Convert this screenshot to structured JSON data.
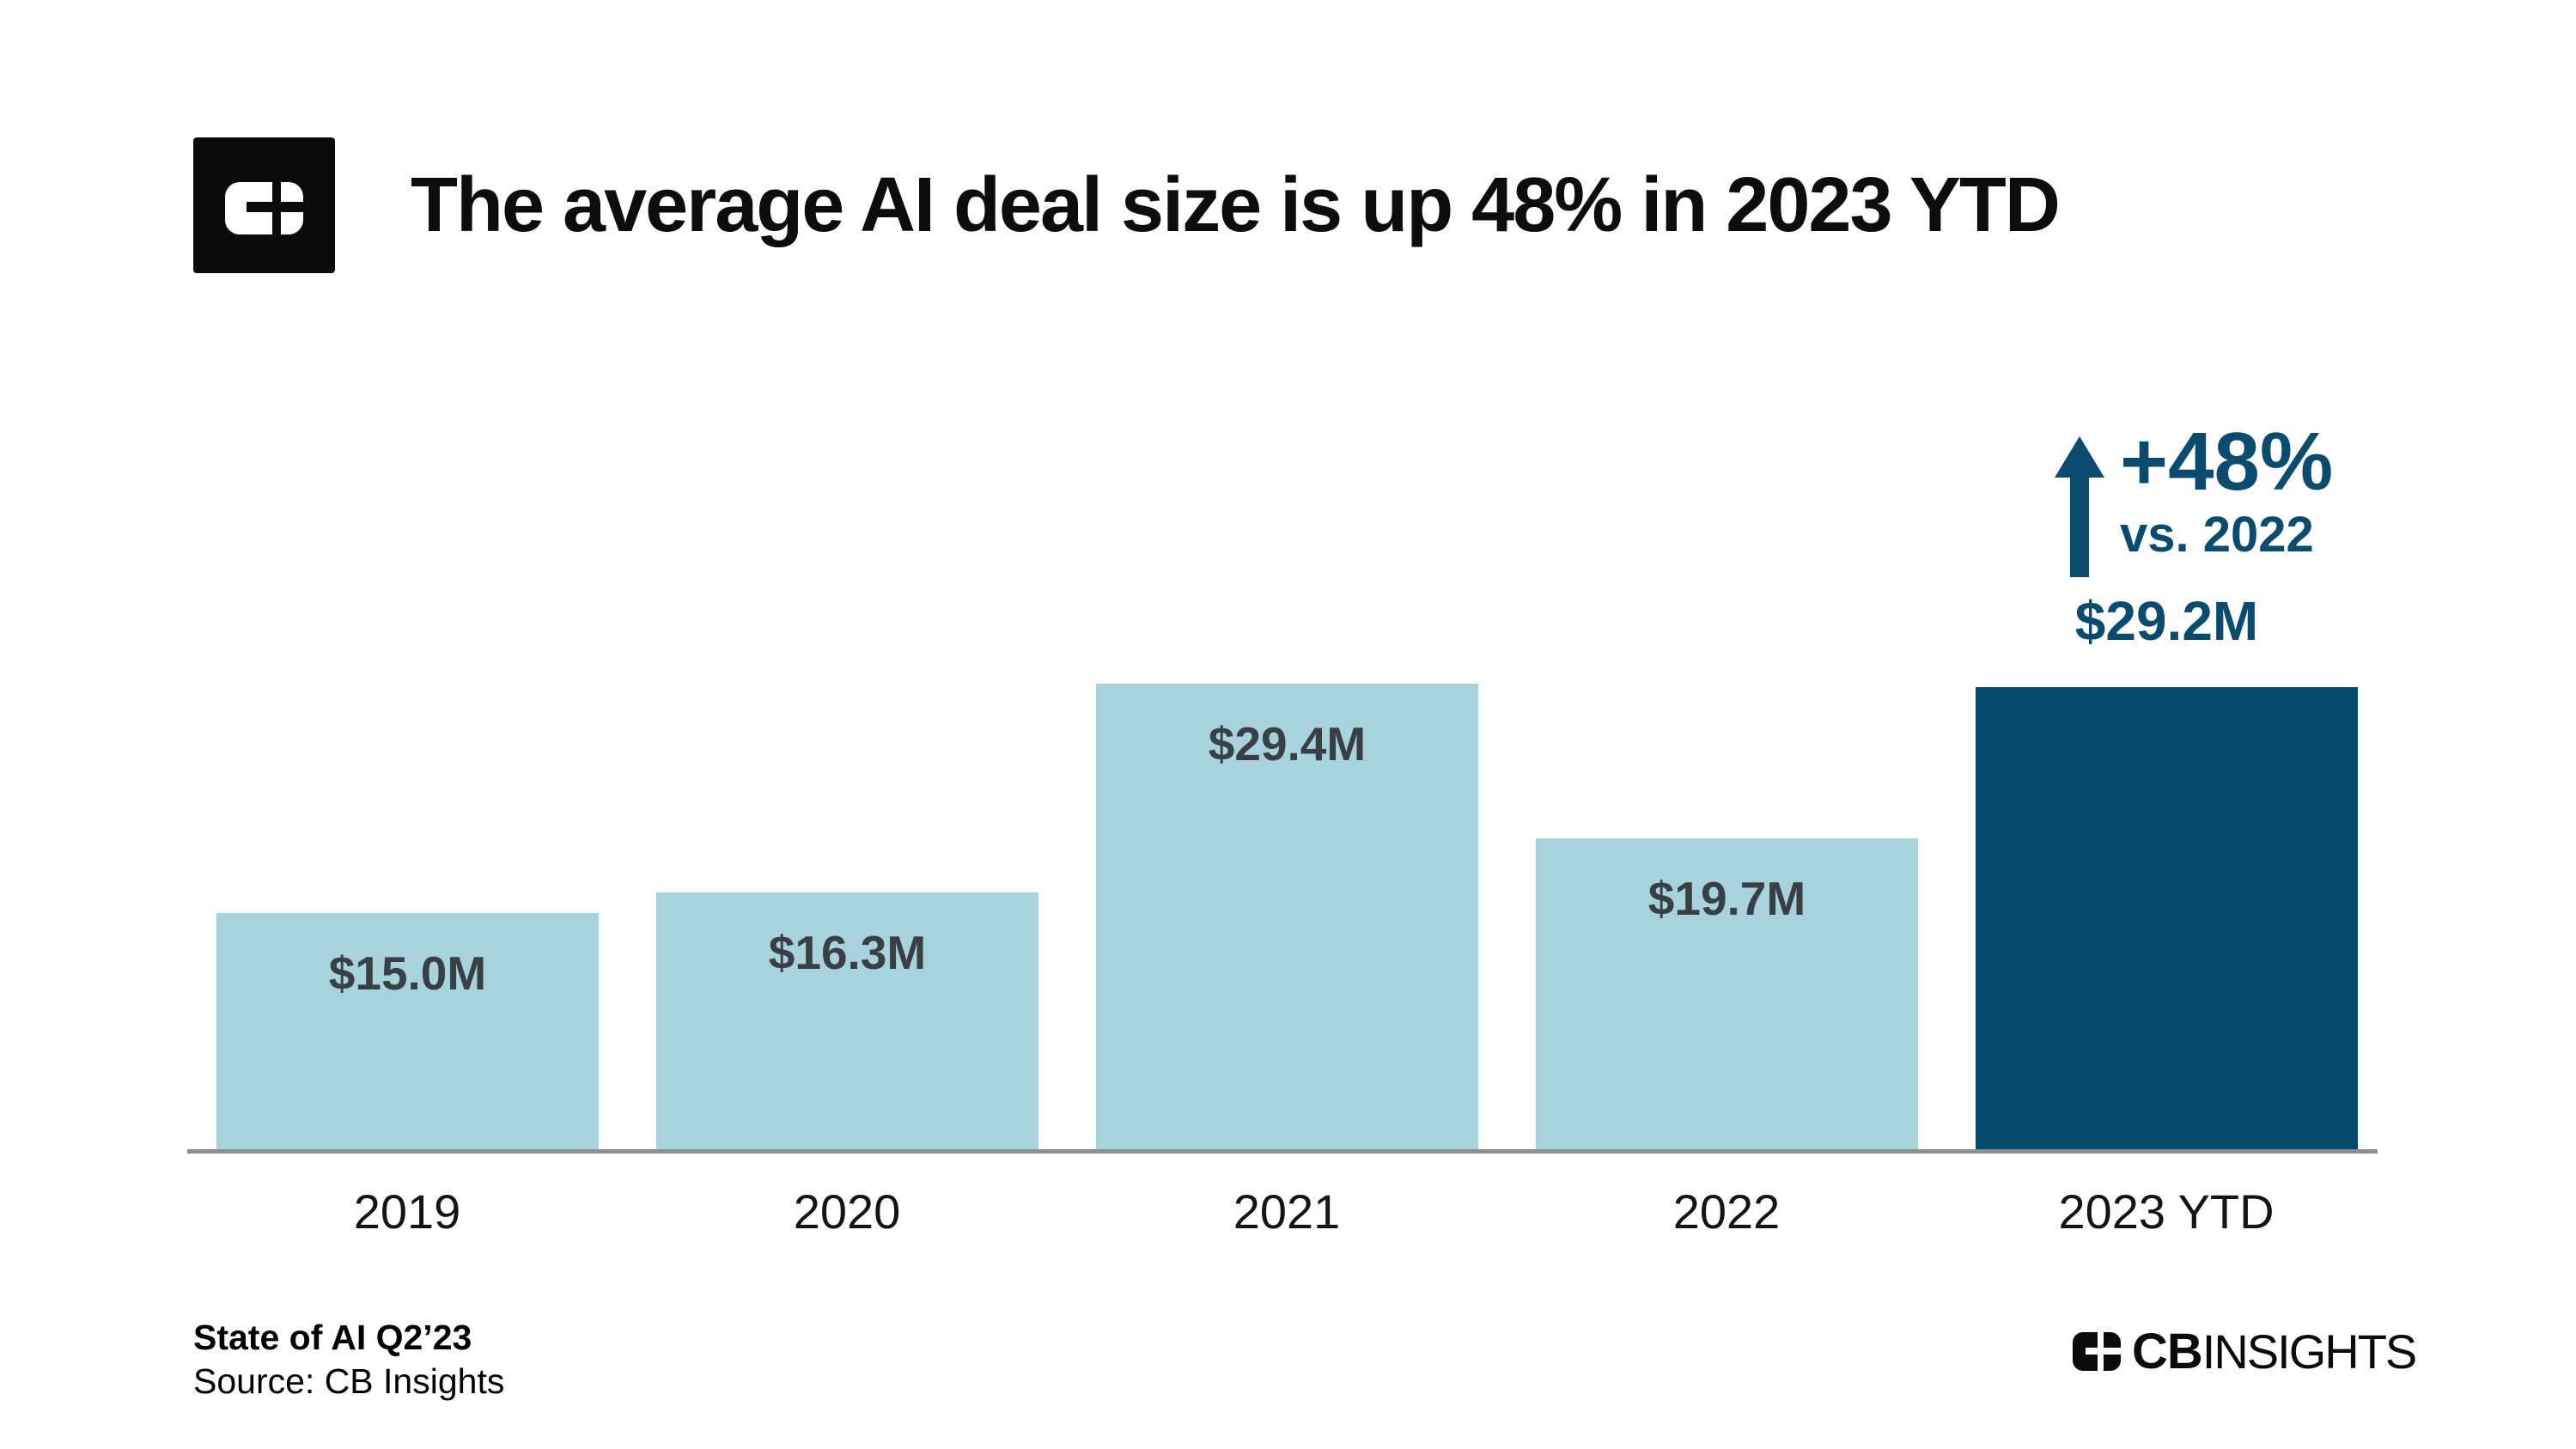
{
  "header": {
    "title": "The average AI deal size is up 48% in 2023 YTD",
    "logo_icon": "cb-insights-logo-mark"
  },
  "chart_data": {
    "type": "bar",
    "title": "The average AI deal size is up 48% in 2023 YTD",
    "categories": [
      "2019",
      "2020",
      "2021",
      "2022",
      "2023 YTD"
    ],
    "values": [
      15.0,
      16.3,
      29.4,
      19.7,
      29.2
    ],
    "value_labels": [
      "$15.0M",
      "$16.3M",
      "$29.4M",
      "$19.7M",
      "$29.2M"
    ],
    "highlight_index": 4,
    "bar_colors": [
      "#a8d3dd",
      "#a8d3dd",
      "#a8d3dd",
      "#a8d3dd",
      "#07496b"
    ],
    "grid": false,
    "legend": false,
    "y_axis_visible": false,
    "annotation": {
      "icon": "up-arrow-icon",
      "delta": "+48%",
      "comparison": "vs. 2022",
      "highlighted_value": "$29.2M"
    }
  },
  "footer": {
    "report_title": "State of AI Q2’23",
    "source": "Source: CB Insights",
    "brand": {
      "cb": "CB",
      "insights": "INSIGHTS"
    }
  },
  "colors": {
    "accent_dark": "#0b4b6d",
    "bar_light": "#a8d3dd",
    "value_label_dark": "#384046",
    "axis_line": "#8c8e90",
    "text": "#111111"
  }
}
